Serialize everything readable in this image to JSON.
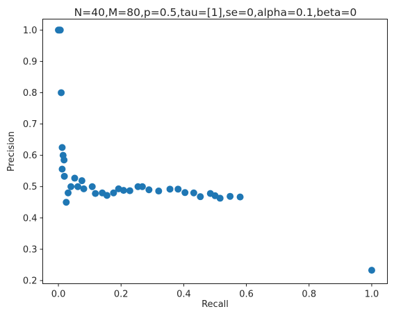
{
  "chart_data": {
    "type": "scatter",
    "title": "N=40,M=80,p=0.5,tau=[1],se=0,alpha=0.1,beta=0",
    "xlabel": "Recall",
    "ylabel": "Precision",
    "xlim": [
      -0.05,
      1.05
    ],
    "ylim": [
      0.19,
      1.035
    ],
    "xticks": [
      0.0,
      0.2,
      0.4,
      0.6,
      0.8,
      1.0
    ],
    "xtick_labels": [
      "0.0",
      "0.2",
      "0.4",
      "0.6",
      "0.8",
      "1.0"
    ],
    "yticks": [
      0.2,
      0.3,
      0.4,
      0.5,
      0.6,
      0.7,
      0.8,
      0.9,
      1.0
    ],
    "ytick_labels": [
      "0.2",
      "0.3",
      "0.4",
      "0.5",
      "0.6",
      "0.7",
      "0.8",
      "0.9",
      "1.0"
    ],
    "grid": false,
    "marker_color": "#1f77b4",
    "points": [
      {
        "x": 0.0,
        "y": 1.0
      },
      {
        "x": 0.003,
        "y": 1.0
      },
      {
        "x": 0.006,
        "y": 1.0
      },
      {
        "x": 0.009,
        "y": 0.8
      },
      {
        "x": 0.012,
        "y": 0.625
      },
      {
        "x": 0.015,
        "y": 0.6
      },
      {
        "x": 0.018,
        "y": 0.585
      },
      {
        "x": 0.012,
        "y": 0.556
      },
      {
        "x": 0.019,
        "y": 0.533
      },
      {
        "x": 0.025,
        "y": 0.45
      },
      {
        "x": 0.031,
        "y": 0.48
      },
      {
        "x": 0.04,
        "y": 0.5
      },
      {
        "x": 0.052,
        "y": 0.527
      },
      {
        "x": 0.062,
        "y": 0.5
      },
      {
        "x": 0.075,
        "y": 0.519
      },
      {
        "x": 0.081,
        "y": 0.493
      },
      {
        "x": 0.108,
        "y": 0.5
      },
      {
        "x": 0.118,
        "y": 0.478
      },
      {
        "x": 0.14,
        "y": 0.48
      },
      {
        "x": 0.155,
        "y": 0.472
      },
      {
        "x": 0.176,
        "y": 0.48
      },
      {
        "x": 0.192,
        "y": 0.493
      },
      {
        "x": 0.208,
        "y": 0.488
      },
      {
        "x": 0.228,
        "y": 0.487
      },
      {
        "x": 0.254,
        "y": 0.5
      },
      {
        "x": 0.268,
        "y": 0.5
      },
      {
        "x": 0.289,
        "y": 0.49
      },
      {
        "x": 0.32,
        "y": 0.486
      },
      {
        "x": 0.356,
        "y": 0.492
      },
      {
        "x": 0.382,
        "y": 0.492
      },
      {
        "x": 0.404,
        "y": 0.481
      },
      {
        "x": 0.432,
        "y": 0.48
      },
      {
        "x": 0.453,
        "y": 0.468
      },
      {
        "x": 0.485,
        "y": 0.478
      },
      {
        "x": 0.5,
        "y": 0.471
      },
      {
        "x": 0.516,
        "y": 0.463
      },
      {
        "x": 0.548,
        "y": 0.469
      },
      {
        "x": 0.58,
        "y": 0.467
      },
      {
        "x": 1.0,
        "y": 0.233
      }
    ]
  }
}
